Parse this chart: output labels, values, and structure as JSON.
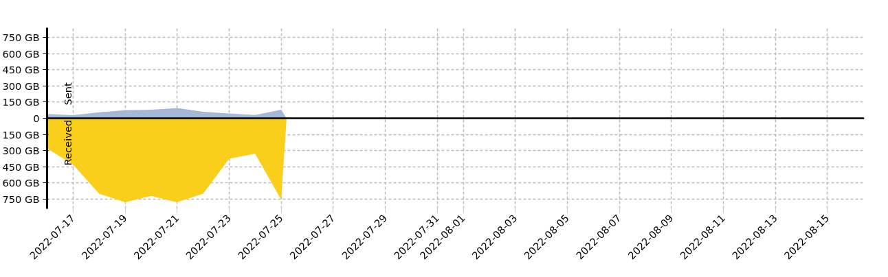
{
  "chart_data": {
    "type": "area",
    "xlim": [
      "2022-07-16",
      "2022-08-16T10:00"
    ],
    "xticks": [
      "2022-07-17",
      "2022-07-19",
      "2022-07-21",
      "2022-07-23",
      "2022-07-25",
      "2022-07-27",
      "2022-07-29",
      "2022-07-31",
      "2022-08-01",
      "2022-08-03",
      "2022-08-05",
      "2022-08-07",
      "2022-08-09",
      "2022-08-11",
      "2022-08-13",
      "2022-08-15"
    ],
    "ylim": [
      -840,
      840
    ],
    "yticks": [
      {
        "value": 750,
        "label": "750 GB"
      },
      {
        "value": 600,
        "label": "600 GB"
      },
      {
        "value": 450,
        "label": "450 GB"
      },
      {
        "value": 300,
        "label": "300 GB"
      },
      {
        "value": 150,
        "label": "150 GB"
      },
      0,
      {
        "value": -150,
        "label": "150 GB"
      },
      {
        "value": -300,
        "label": "300 GB"
      },
      {
        "value": -450,
        "label": "450 GB"
      },
      {
        "value": -600,
        "label": "600 GB"
      },
      {
        "value": -750,
        "label": "750 GB"
      }
    ],
    "grid": true,
    "ref_lines": [
      {
        "axis": "y",
        "value": 0,
        "color": "#000000"
      }
    ],
    "series": [
      {
        "name": "Sent",
        "color": "#a5b8d8",
        "x": [
          "2022-07-16",
          "2022-07-17",
          "2022-07-18",
          "2022-07-19",
          "2022-07-20",
          "2022-07-21",
          "2022-07-22",
          "2022-07-23",
          "2022-07-24",
          "2022-07-25",
          "2022-07-25T05:00"
        ],
        "values": [
          40,
          28,
          55,
          75,
          80,
          95,
          60,
          45,
          30,
          80,
          0
        ]
      },
      {
        "name": "Received",
        "color": "#f9cf1b",
        "x": [
          "2022-07-16",
          "2022-07-17",
          "2022-07-18",
          "2022-07-19",
          "2022-07-20",
          "2022-07-21",
          "2022-07-22",
          "2022-07-23",
          "2022-07-24",
          "2022-07-25",
          "2022-07-25T05:00"
        ],
        "values": [
          -280,
          -430,
          -700,
          -780,
          -720,
          -780,
          -700,
          -375,
          -330,
          -755,
          0
        ]
      }
    ]
  }
}
